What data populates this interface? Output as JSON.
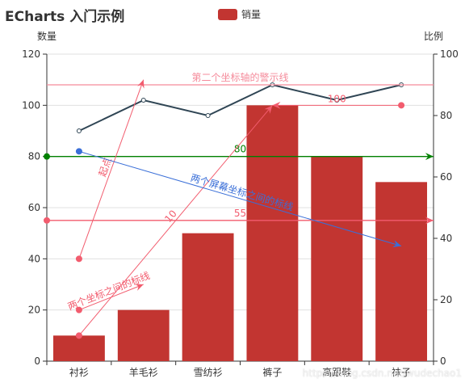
{
  "title": "ECharts 入门示例",
  "legend": {
    "label": "销量",
    "color": "#c23531"
  },
  "watermark": "https://blog.csdn.net/wudechao1",
  "chart_data": {
    "type": "bar",
    "title": "ECharts 入门示例",
    "categories": [
      "衬衫",
      "羊毛衫",
      "雪纺衫",
      "裤子",
      "高跟鞋",
      "袜子"
    ],
    "series": [
      {
        "name": "销量",
        "type": "bar",
        "axis": "left",
        "values": [
          10,
          20,
          50,
          100,
          80,
          70
        ],
        "color": "#c23531"
      },
      {
        "type": "line",
        "axis": "right",
        "values": [
          75,
          85,
          80,
          90,
          85,
          90
        ],
        "color": "#2f4554"
      }
    ],
    "y_left": {
      "label": "数量",
      "min": 0,
      "max": 120,
      "ticks": [
        0,
        20,
        40,
        60,
        80,
        100,
        120
      ]
    },
    "y_right": {
      "label": "比例",
      "min": 0,
      "max": 100,
      "ticks": [
        0,
        20,
        40,
        60,
        80,
        100
      ]
    },
    "grid": "horizontal",
    "legend_position": "top-center",
    "mark_lines": [
      {
        "label": "55",
        "axis": "left",
        "kind": "horizontal",
        "y": 55,
        "color": "#f25c6e"
      },
      {
        "label": "第二个坐标轴的警示线",
        "axis": "right",
        "kind": "horizontal",
        "y": 90,
        "color": "#f58b9b"
      },
      {
        "label": "80",
        "axis": "left",
        "kind": "horizontal",
        "y": 80,
        "color": "#008000",
        "label_color": "#008000"
      },
      {
        "label": "100",
        "axis": "left",
        "kind": "segment",
        "from": [
          "袜子",
          100
        ],
        "to": [
          "裤子",
          100
        ],
        "color": "#f25c6e"
      },
      {
        "label": "10",
        "axis": "left",
        "kind": "segment",
        "from": [
          "衬衫",
          10
        ],
        "to": [
          "裤子",
          100
        ],
        "color": "#f25c6e"
      },
      {
        "label": "起点",
        "axis": "left",
        "kind": "segment",
        "from": [
          "衬衫",
          40
        ],
        "to": [
          "羊毛衫",
          110
        ],
        "color": "#f25c6e"
      },
      {
        "label": "两个坐标之间的标线",
        "axis": "left",
        "kind": "segment",
        "from": [
          "衬衫",
          20
        ],
        "to": [
          "羊毛衫",
          30
        ],
        "color": "#f25c6e"
      },
      {
        "label": "两个屏幕坐标之间的标线",
        "axis": "left",
        "kind": "segment",
        "from": [
          "衬衫",
          82
        ],
        "to": [
          "袜子",
          45
        ],
        "color": "#3a6fd8",
        "label_color": "#3a6fd8"
      }
    ]
  }
}
